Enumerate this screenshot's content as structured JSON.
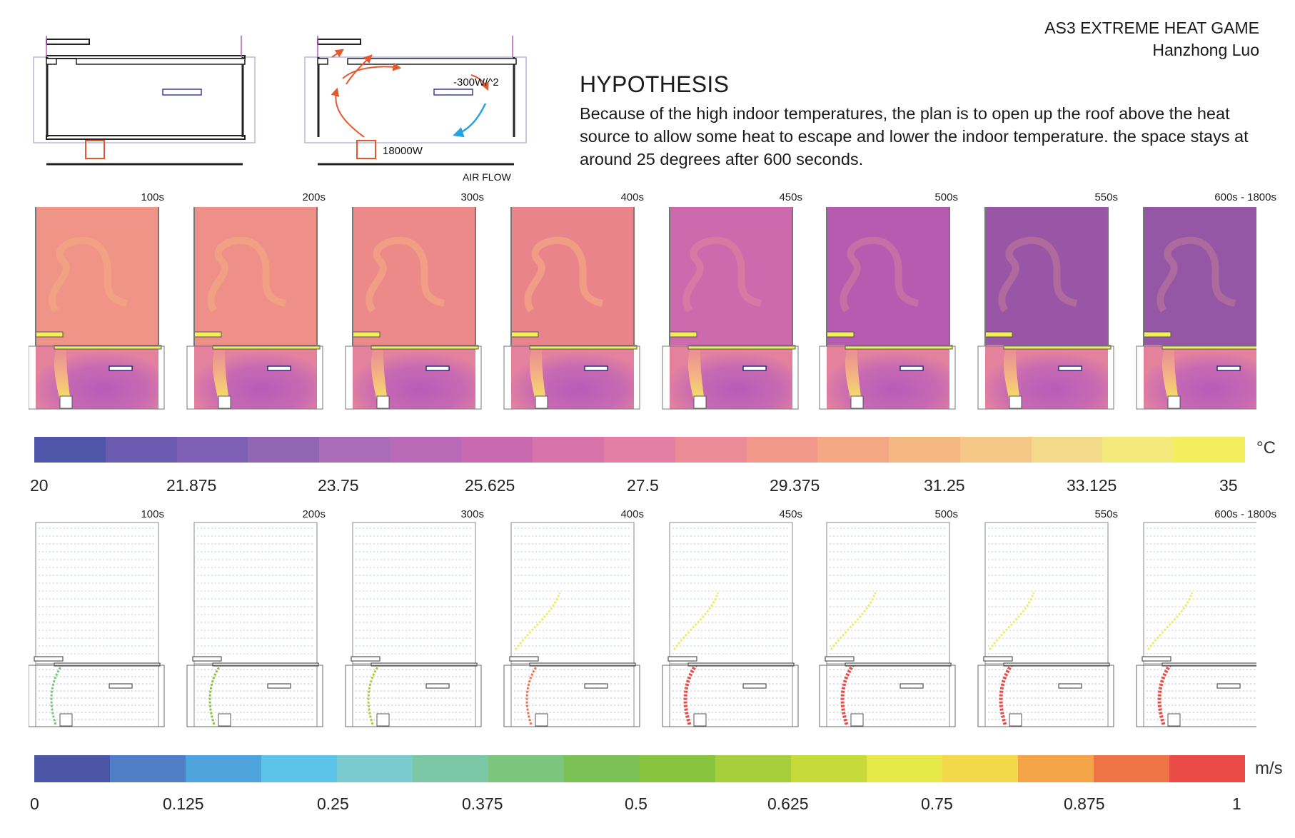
{
  "header": {
    "title": "AS3 EXTREME HEAT GAME",
    "author": "Hanzhong Luo"
  },
  "hypothesis": {
    "heading": "HYPOTHESIS",
    "body": "Because of the high indoor temperatures, the plan is to open up the roof above the heat source to allow some heat to escape and lower the indoor temperature. the space stays at around 25 degrees after 600 seconds."
  },
  "diagram": {
    "cooling_label": "-300W/^2",
    "heat_label": "18000W",
    "caption": "AIR FLOW"
  },
  "time_steps": [
    "100s",
    "200s",
    "300s",
    "400s",
    "450s",
    "500s",
    "550s",
    "600s - 1800s"
  ],
  "temperature_scale": {
    "unit": "°C",
    "ticks": [
      "20",
      "21.875",
      "23.75",
      "25.625",
      "27.5",
      "29.375",
      "31.25",
      "33.125",
      "35"
    ],
    "colors": [
      "#4f55a8",
      "#6a5bb0",
      "#7d5fb3",
      "#9166b3",
      "#a86db6",
      "#b96ab6",
      "#c96ab0",
      "#d874ab",
      "#e27fa3",
      "#ec8c97",
      "#f2998b",
      "#f5a884",
      "#f6b882",
      "#f5c887",
      "#f3da8b",
      "#f4ea7b",
      "#f3ef5c"
    ]
  },
  "velocity_scale": {
    "unit": "m/s",
    "ticks": [
      "0",
      "0.125",
      "0.25",
      "0.375",
      "0.5",
      "0.625",
      "0.75",
      "0.875",
      "1"
    ],
    "colors": [
      "#4c56a6",
      "#4f7ec6",
      "#4ea3dc",
      "#5cc4e8",
      "#79cbd0",
      "#7cc7a5",
      "#7cc57d",
      "#7bc155",
      "#88c53f",
      "#a7ce3c",
      "#c6da3a",
      "#e7e84a",
      "#f3d94a",
      "#f2a446",
      "#ee7445",
      "#ea4b47"
    ]
  },
  "icons": [
    "heat-source-icon",
    "cooling-panel-icon",
    "airflow-arrow-icon"
  ]
}
